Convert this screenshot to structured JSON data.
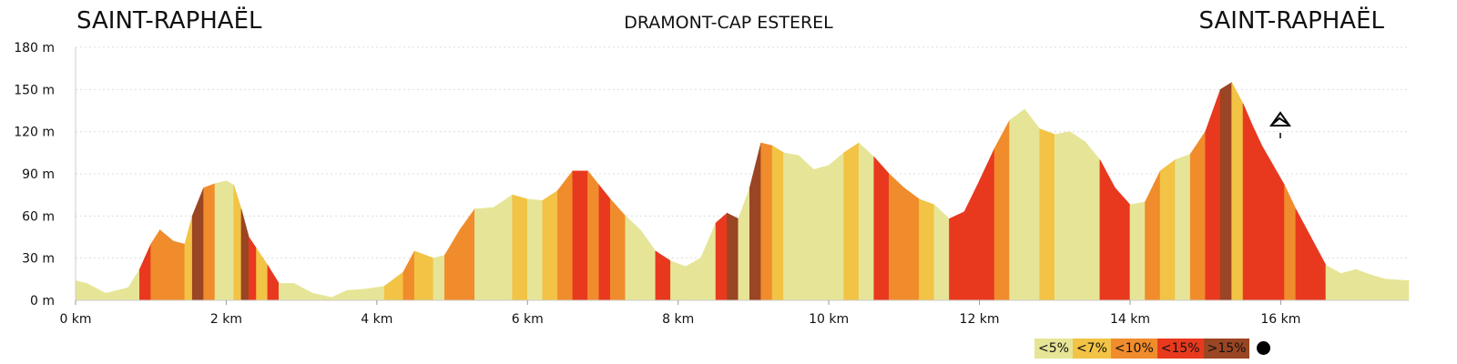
{
  "chart_data": {
    "type": "area",
    "title_left": "SAINT-RAPHAËL",
    "title_center": "DRAMONT-CAP ESTEREL",
    "title_right": "SAINT-RAPHAËL",
    "x_unit": "km",
    "y_unit": "m",
    "xlim": [
      0,
      17.7
    ],
    "ylim": [
      0,
      180
    ],
    "x_ticks": [
      0,
      2,
      4,
      6,
      8,
      10,
      12,
      14,
      16
    ],
    "x_tick_labels": [
      "0 km",
      "2 km",
      "4 km",
      "6 km",
      "8 km",
      "10 km",
      "12 km",
      "14 km",
      "16 km"
    ],
    "y_ticks": [
      0,
      30,
      60,
      90,
      120,
      150,
      180
    ],
    "y_tick_labels": [
      "0 m",
      "30 m",
      "60 m",
      "90 m",
      "120 m",
      "150 m",
      "180 m"
    ],
    "grid": "horizontal dotted",
    "legend": {
      "position": "bottom-right",
      "items": [
        {
          "label": "<5%",
          "color": "#e6e597"
        },
        {
          "label": "<7%",
          "color": "#f2c344"
        },
        {
          "label": "<10%",
          "color": "#f08c2c"
        },
        {
          "label": "<15%",
          "color": "#e8391f"
        },
        {
          "label": ">15%",
          "color": "#9a4523"
        }
      ]
    },
    "x": [
      0,
      0.15,
      0.4,
      0.7,
      0.85,
      1.0,
      1.12,
      1.3,
      1.45,
      1.55,
      1.7,
      1.85,
      2.0,
      2.1,
      2.2,
      2.3,
      2.4,
      2.55,
      2.7,
      2.9,
      3.15,
      3.4,
      3.6,
      3.85,
      4.1,
      4.35,
      4.5,
      4.75,
      4.9,
      5.1,
      5.3,
      5.55,
      5.8,
      6.0,
      6.2,
      6.4,
      6.6,
      6.8,
      6.95,
      7.1,
      7.3,
      7.5,
      7.7,
      7.9,
      8.1,
      8.3,
      8.5,
      8.65,
      8.8,
      8.95,
      9.1,
      9.25,
      9.4,
      9.6,
      9.8,
      10.0,
      10.2,
      10.4,
      10.6,
      10.8,
      11.0,
      11.2,
      11.4,
      11.6,
      11.8,
      12.0,
      12.2,
      12.4,
      12.6,
      12.8,
      13.0,
      13.2,
      13.4,
      13.6,
      13.8,
      14.0,
      14.2,
      14.4,
      14.6,
      14.8,
      15.0,
      15.2,
      15.35,
      15.5,
      15.62,
      15.75,
      15.9,
      16.05,
      16.2,
      16.4,
      16.6,
      16.8,
      17.0,
      17.2,
      17.4,
      17.7
    ],
    "elevation": [
      14,
      12,
      5,
      9,
      22,
      40,
      50,
      42,
      40,
      60,
      80,
      83,
      85,
      82,
      65,
      45,
      37,
      25,
      12,
      12,
      5,
      2,
      7,
      8,
      10,
      20,
      35,
      30,
      32,
      50,
      65,
      66,
      75,
      72,
      71,
      78,
      92,
      92,
      82,
      72,
      60,
      50,
      35,
      28,
      24,
      30,
      55,
      62,
      58,
      80,
      112,
      110,
      105,
      103,
      93,
      96,
      105,
      112,
      102,
      90,
      80,
      72,
      68,
      58,
      63,
      85,
      108,
      128,
      136,
      122,
      118,
      120,
      113,
      100,
      80,
      68,
      70,
      92,
      100,
      104,
      120,
      150,
      155,
      140,
      125,
      110,
      96,
      82,
      65,
      45,
      25,
      19,
      22,
      18,
      15,
      14
    ],
    "segment_grade": [
      1,
      1,
      1,
      1,
      4,
      3,
      3,
      3,
      2,
      5,
      3,
      1,
      1,
      2,
      5,
      4,
      2,
      4,
      1,
      1,
      1,
      1,
      1,
      1,
      2,
      3,
      2,
      1,
      3,
      3,
      1,
      1,
      2,
      1,
      2,
      3,
      4,
      3,
      4,
      3,
      1,
      1,
      4,
      1,
      1,
      1,
      4,
      5,
      1,
      5,
      3,
      2,
      1,
      1,
      1,
      1,
      2,
      1,
      4,
      3,
      3,
      2,
      1,
      4,
      4,
      4,
      3,
      1,
      1,
      2,
      1,
      1,
      1,
      4,
      4,
      1,
      3,
      2,
      1,
      3,
      4,
      5,
      2,
      4,
      4,
      4,
      4,
      3,
      4,
      4,
      1,
      1,
      1,
      1,
      1
    ]
  }
}
